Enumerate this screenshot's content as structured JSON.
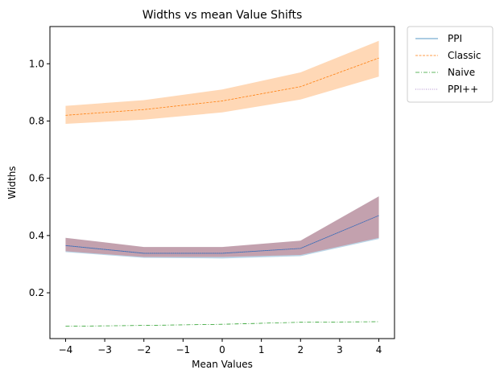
{
  "chart_data": {
    "type": "line",
    "title": "Widths vs mean Value Shifts",
    "xlabel": "Mean Values",
    "ylabel": "Widths",
    "xlim": [
      -4.4,
      4.4
    ],
    "ylim": [
      0.04,
      1.13
    ],
    "xticks": [
      -4,
      -3,
      -2,
      -1,
      0,
      1,
      2,
      3,
      4
    ],
    "xtick_labels": [
      "−4",
      "−3",
      "−2",
      "−1",
      "0",
      "1",
      "2",
      "3",
      "4"
    ],
    "yticks": [
      0.2,
      0.4,
      0.6,
      0.8,
      1.0
    ],
    "ytick_labels": [
      "0.2",
      "0.4",
      "0.6",
      "0.8",
      "1.0"
    ],
    "grid": false,
    "legend_position": "outside-top-right",
    "x": [
      -4,
      -2,
      0,
      2,
      4
    ],
    "series": [
      {
        "name": "PPI",
        "color": "#1f77b4",
        "dash": "solid",
        "values": [
          0.365,
          0.338,
          0.338,
          0.355,
          0.47
        ],
        "band_low": [
          0.342,
          0.322,
          0.32,
          0.328,
          0.388
        ],
        "band_high": [
          0.392,
          0.36,
          0.36,
          0.382,
          0.537
        ],
        "band_color": "#1f77b4"
      },
      {
        "name": "Classic",
        "color": "#ff7f0e",
        "dash": "dashed",
        "values": [
          0.82,
          0.84,
          0.87,
          0.92,
          1.02
        ],
        "band_low": [
          0.79,
          0.805,
          0.83,
          0.875,
          0.955
        ],
        "band_high": [
          0.853,
          0.873,
          0.91,
          0.97,
          1.08
        ],
        "band_color": "#ff7f0e"
      },
      {
        "name": "Naive",
        "color": "#2ca02c",
        "dash": "dashdot",
        "values": [
          0.083,
          0.086,
          0.09,
          0.097,
          0.099
        ],
        "band_low": null,
        "band_high": null,
        "band_color": "#2ca02c"
      },
      {
        "name": "PPI++",
        "color": "#9467bd",
        "dash": "dotted",
        "values": [
          0.365,
          0.338,
          0.338,
          0.355,
          0.47
        ],
        "band_low": [
          0.345,
          0.325,
          0.325,
          0.332,
          0.392
        ],
        "band_high": [
          0.392,
          0.36,
          0.36,
          0.382,
          0.537
        ],
        "band_color": "#d62728"
      }
    ]
  }
}
